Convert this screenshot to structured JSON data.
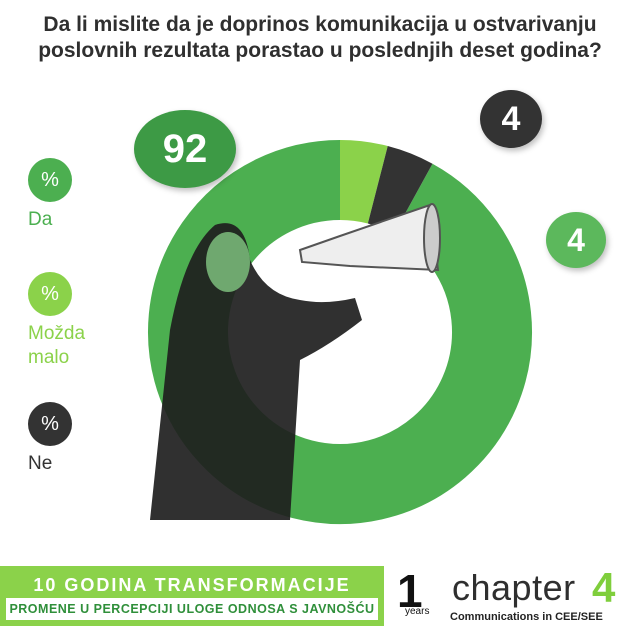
{
  "title_lines": [
    "Da li mislite da je doprinos komunikacija u ostvarivanju",
    "poslovnih rezultata porastao u poslednjih deset godina?"
  ],
  "chart_data": {
    "type": "pie",
    "title": "Da li mislite da je doprinos komunikacija u ostvarivanju poslovnih rezultata porastao u poslednjih deset godina?",
    "unit": "%",
    "categories": [
      "Da",
      "Možda malo",
      "Ne"
    ],
    "values": [
      92,
      4,
      4
    ],
    "colors": [
      "#4caf50",
      "#8bd24a",
      "#333333"
    ]
  },
  "legend": [
    {
      "symbol": "%",
      "label": "Da",
      "color": "#4caf50"
    },
    {
      "symbol": "%",
      "label": "Možda malo",
      "color": "#8bd24a"
    },
    {
      "symbol": "%",
      "label": "Ne",
      "color": "#333333"
    }
  ],
  "bubbles": {
    "da": "92",
    "ne": "4",
    "mozda": "4"
  },
  "footer": {
    "title": "10 GODINA TRANSFORMACIJE",
    "subtitle": "PROMENE U PERCEPCIJI ULOGE ODNOSA S JAVNOŠĆU"
  },
  "logo": {
    "ten": "1",
    "years": "years",
    "chapter": "chapter",
    "four": "4",
    "tagline": "Communications in CEE/SEE"
  }
}
